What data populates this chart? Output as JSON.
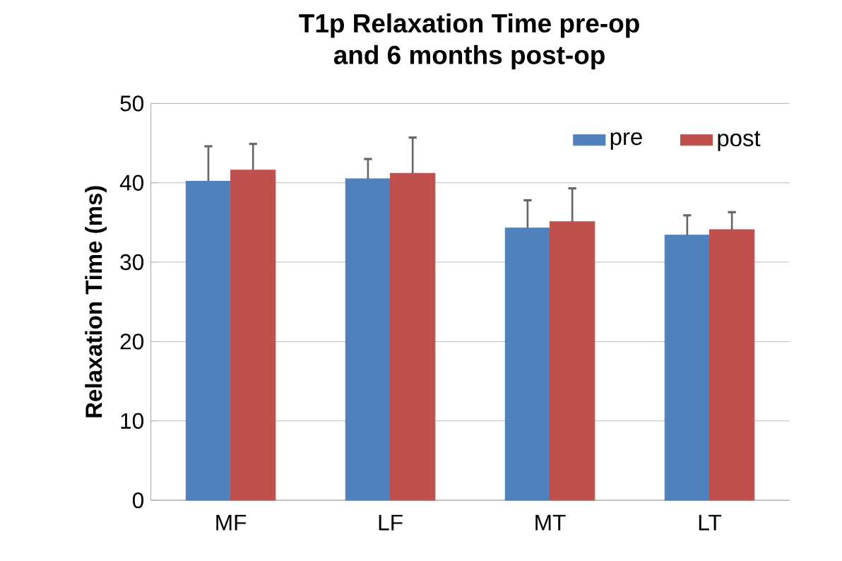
{
  "chart_data": {
    "type": "bar",
    "title": "T1p Relaxation Time pre-op\nand 6 months post-op",
    "ylabel": "Relaxation Time (ms)",
    "categories": [
      "MF",
      "LF",
      "MT",
      "LT"
    ],
    "series": [
      {
        "name": "pre",
        "color": "#4f81bd",
        "values": [
          40.2,
          40.5,
          34.3,
          33.4
        ],
        "errors": [
          [
            40.2,
            44.6
          ],
          [
            40.5,
            43.0
          ],
          [
            34.3,
            37.8
          ],
          [
            33.4,
            35.9
          ]
        ]
      },
      {
        "name": "post",
        "color": "#c0504d",
        "values": [
          41.6,
          41.2,
          35.1,
          34.1
        ],
        "errors": [
          [
            41.6,
            44.9
          ],
          [
            41.2,
            45.7
          ],
          [
            35.1,
            39.3
          ],
          [
            34.1,
            36.3
          ]
        ]
      }
    ],
    "ylim": [
      0,
      50
    ],
    "yticks": [
      0,
      10,
      20,
      30,
      40,
      50
    ],
    "grid": "y",
    "legend": "top right"
  }
}
